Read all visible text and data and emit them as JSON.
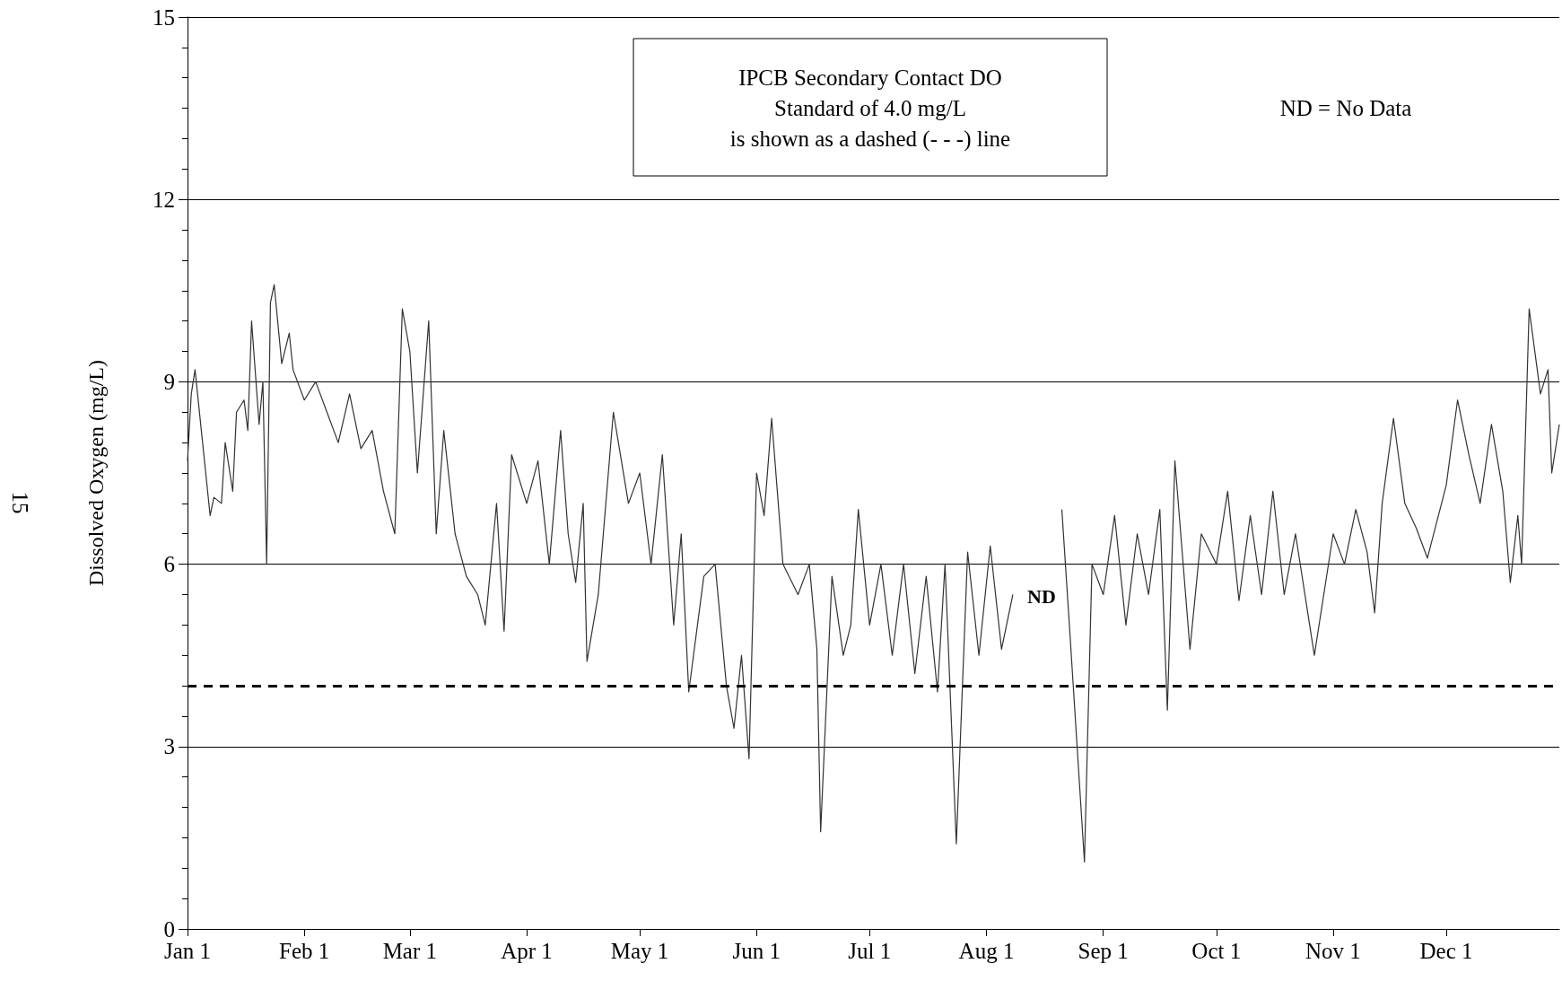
{
  "chart_data": {
    "type": "line",
    "ylabel": "Dissolved Oxygen (mg/L)",
    "annotations": [
      "IPCB Secondary Contact DO\nStandard of 4.0 mg/L\nis shown as a dashed (- - -) line",
      "ND = No Data",
      "15",
      "ND"
    ],
    "xlim": [
      "--01-01",
      "--12-31"
    ],
    "xticks": [
      {
        "value": "--01-01",
        "label": "Jan 1"
      },
      {
        "value": "--02-01",
        "label": "Feb 1"
      },
      {
        "value": "--03-01",
        "label": "Mar 1"
      },
      {
        "value": "--04-01",
        "label": "Apr 1"
      },
      {
        "value": "--05-01",
        "label": "May 1"
      },
      {
        "value": "--06-01",
        "label": "Jun 1"
      },
      {
        "value": "--07-01",
        "label": "Jul 1"
      },
      {
        "value": "--08-01",
        "label": "Aug 1"
      },
      {
        "value": "--09-01",
        "label": "Sep 1"
      },
      {
        "value": "--10-01",
        "label": "Oct 1"
      },
      {
        "value": "--11-01",
        "label": "Nov 1"
      },
      {
        "value": "--12-01",
        "label": "Dec 1"
      }
    ],
    "ylim": [
      0,
      15
    ],
    "yticks": [
      0,
      {
        "value": 0.5,
        "label": null
      },
      {
        "value": 1,
        "label": null
      },
      {
        "value": 1.5,
        "label": null
      },
      {
        "value": 2,
        "label": null
      },
      {
        "value": 2.5,
        "label": null
      },
      3,
      {
        "value": 3.5,
        "label": null
      },
      {
        "value": 4,
        "label": null
      },
      {
        "value": 4.5,
        "label": null
      },
      {
        "value": 5,
        "label": null
      },
      {
        "value": 5.5,
        "label": null
      },
      6,
      {
        "value": 6.5,
        "label": null
      },
      {
        "value": 7,
        "label": null
      },
      {
        "value": 7.5,
        "label": null
      },
      {
        "value": 8,
        "label": null
      },
      {
        "value": 8.5,
        "label": null
      },
      9,
      {
        "value": 9.5,
        "label": null
      },
      {
        "value": 10,
        "label": null
      },
      {
        "value": 10.5,
        "label": null
      },
      {
        "value": 11,
        "label": null
      },
      {
        "value": 11.5,
        "label": null
      },
      12,
      {
        "value": 12.5,
        "label": null
      },
      {
        "value": 13,
        "label": null
      },
      {
        "value": 13.5,
        "label": null
      },
      {
        "value": 14,
        "label": null
      },
      {
        "value": 14.5,
        "label": null
      },
      15
    ],
    "grid": "y",
    "marker": "none",
    "line_style": "solid",
    "ref_lines": [
      {
        "axis": "y",
        "value": 4,
        "color": "#000000",
        "line_style": "dashed"
      }
    ],
    "x": [
      "--01-01",
      "--01-02",
      "--01-03",
      "--01-05",
      "--01-07",
      "--01-08",
      "--01-10",
      "--01-11",
      "--01-13",
      "--01-14",
      "--01-16",
      "--01-17",
      "--01-18",
      "--01-20",
      "--01-21",
      "--01-22",
      "--01-23",
      "--01-24",
      "--01-26",
      "--01-28",
      "--01-29",
      "--02-01",
      "--02-04",
      "--02-07",
      "--02-10",
      "--02-13",
      "--02-16",
      "--02-19",
      "--02-22",
      "--02-25",
      "--02-27",
      "--03-01",
      "--03-03",
      "--03-06",
      "--03-08",
      "--03-10",
      "--03-13",
      "--03-16",
      "--03-19",
      "--03-21",
      "--03-24",
      "--03-26",
      "--03-28",
      "--04-01",
      "--04-04",
      "--04-07",
      "--04-10",
      "--04-12",
      "--04-14",
      "--04-16",
      "--04-17",
      "--04-20",
      "--04-24",
      "--04-28",
      "--05-01",
      "--05-04",
      "--05-07",
      "--05-10",
      "--05-12",
      "--05-14",
      "--05-18",
      "--05-21",
      "--05-24",
      "--05-26",
      "--05-28",
      "--05-30",
      "--06-01",
      "--06-03",
      "--06-05",
      "--06-08",
      "--06-12",
      "--06-15",
      "--06-17",
      "--06-18",
      "--06-21",
      "--06-24",
      "--06-26",
      "--06-28",
      "--07-01",
      "--07-04",
      "--07-07",
      "--07-10",
      "--07-13",
      "--07-16",
      "--07-19",
      "--07-21",
      "--07-24",
      "--07-27",
      "--07-30",
      "--08-02",
      "--08-05",
      "--08-08",
      "--08-10",
      "--08-21",
      "--08-23",
      "--08-27",
      "--08-29",
      "--09-01",
      "--09-04",
      "--09-07",
      "--09-10",
      "--09-13",
      "--09-16",
      "--09-18",
      "--09-20",
      "--09-24",
      "--09-27",
      "--10-01",
      "--10-04",
      "--10-07",
      "--10-10",
      "--10-13",
      "--10-16",
      "--10-19",
      "--10-22",
      "--10-27",
      "--11-01",
      "--11-04",
      "--11-07",
      "--11-10",
      "--11-12",
      "--11-14",
      "--11-17",
      "--11-20",
      "--11-23",
      "--11-26",
      "--12-01",
      "--12-04",
      "--12-07",
      "--12-10",
      "--12-13",
      "--12-16",
      "--12-18",
      "--12-20",
      "--12-21",
      "--12-23",
      "--12-26",
      "--12-28",
      "--12-29",
      "--12-31"
    ],
    "series": [
      {
        "color": "#333333",
        "values": [
          7.7,
          8.8,
          9.2,
          8.0,
          6.8,
          7.1,
          7.0,
          8.0,
          7.2,
          8.5,
          8.7,
          8.2,
          10.0,
          8.3,
          9.0,
          6.0,
          10.3,
          10.6,
          9.3,
          9.8,
          9.2,
          8.7,
          9.0,
          8.5,
          8.0,
          8.8,
          7.9,
          8.2,
          7.2,
          6.5,
          10.2,
          9.5,
          7.5,
          10.0,
          6.5,
          8.2,
          6.5,
          5.8,
          5.5,
          5.0,
          7.0,
          4.9,
          7.8,
          7.0,
          7.7,
          6.0,
          8.2,
          6.5,
          5.7,
          7.0,
          4.4,
          5.5,
          8.5,
          7.0,
          7.5,
          6.0,
          7.8,
          5.0,
          6.5,
          3.9,
          5.8,
          6.0,
          4.0,
          3.3,
          4.5,
          2.8,
          7.5,
          6.8,
          8.4,
          6.0,
          5.5,
          6.0,
          4.6,
          1.6,
          5.8,
          4.5,
          5.0,
          6.9,
          5.0,
          6.0,
          4.5,
          6.0,
          4.2,
          5.8,
          3.9,
          6.0,
          1.4,
          6.2,
          4.5,
          6.3,
          4.6,
          5.5,
          null,
          6.9,
          5.0,
          1.1,
          6.0,
          5.5,
          6.8,
          5.0,
          6.5,
          5.5,
          6.9,
          3.6,
          7.7,
          4.6,
          6.5,
          6.0,
          7.2,
          5.4,
          6.8,
          5.5,
          7.2,
          5.5,
          6.5,
          4.5,
          6.5,
          6.0,
          6.9,
          6.2,
          5.2,
          7.0,
          8.4,
          7.0,
          6.6,
          6.1,
          7.3,
          8.7,
          7.8,
          7.0,
          8.3,
          7.2,
          5.7,
          6.8,
          6.0,
          10.2,
          8.8,
          9.2,
          7.5,
          8.3
        ]
      }
    ]
  }
}
